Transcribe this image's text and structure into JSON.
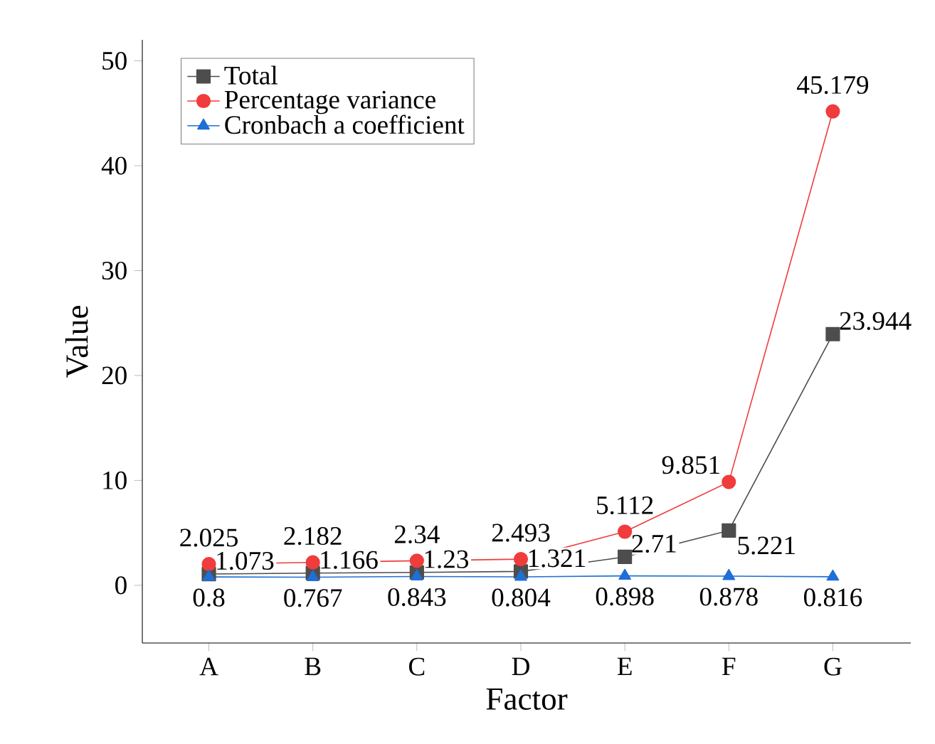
{
  "chart_data": {
    "type": "line",
    "xlabel": "Factor",
    "ylabel": "Value",
    "categories": [
      "A",
      "B",
      "C",
      "D",
      "E",
      "F",
      "G"
    ],
    "series": [
      {
        "name": "Total",
        "color": "#4d4d4d",
        "marker": "square",
        "values": [
          1.073,
          1.166,
          1.23,
          1.321,
          2.71,
          5.221,
          23.944
        ]
      },
      {
        "name": "Percentage variance",
        "color": "#f03c3c",
        "marker": "circle",
        "values": [
          2.025,
          2.182,
          2.34,
          2.493,
          5.112,
          9.851,
          45.179
        ]
      },
      {
        "name": "Cronbach a coefficient",
        "color": "#1f6fd6",
        "marker": "triangle",
        "values": [
          0.8,
          0.767,
          0.843,
          0.804,
          0.898,
          0.878,
          0.816
        ]
      }
    ],
    "ylim": [
      -5.5,
      52
    ],
    "yticks": [
      0,
      10,
      20,
      30,
      40,
      50
    ],
    "data_labels": true,
    "legend": "top left",
    "grid": false,
    "line_style": "solid"
  }
}
